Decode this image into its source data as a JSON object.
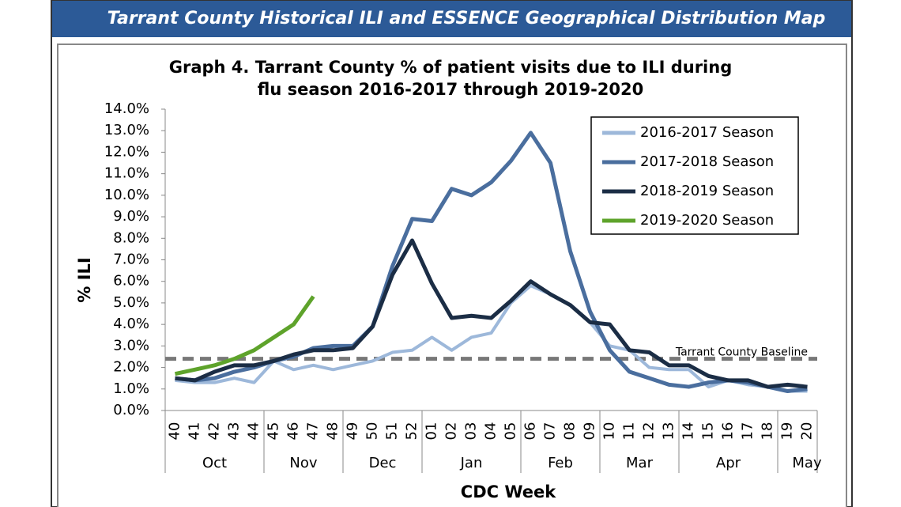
{
  "header": {
    "title": "Tarrant County Historical ILI and ESSENCE Geographical Distribution Map"
  },
  "chart_data": {
    "type": "line",
    "title": [
      "Graph 4. Tarrant County % of patient visits due to ILI during",
      "flu season 2016-2017 through 2019-2020"
    ],
    "y_label": "% ILI",
    "x_label": "CDC Week",
    "categories": [
      "40",
      "41",
      "42",
      "43",
      "44",
      "45",
      "46",
      "47",
      "48",
      "49",
      "50",
      "51",
      "52",
      "01",
      "02",
      "03",
      "04",
      "05",
      "06",
      "07",
      "08",
      "09",
      "10",
      "11",
      "12",
      "13",
      "14",
      "15",
      "16",
      "17",
      "18",
      "19",
      "20"
    ],
    "groups": [
      {
        "label": "Oct",
        "from": "40",
        "to": "44"
      },
      {
        "label": "Nov",
        "from": "45",
        "to": "48"
      },
      {
        "label": "Dec",
        "from": "49",
        "to": "52"
      },
      {
        "label": "Jan",
        "from": "01",
        "to": "05"
      },
      {
        "label": "Feb",
        "from": "06",
        "to": "09"
      },
      {
        "label": "Mar",
        "from": "10",
        "to": "13"
      },
      {
        "label": "Apr",
        "from": "14",
        "to": "18"
      },
      {
        "label": "May",
        "from": "19",
        "to": "20"
      }
    ],
    "series": [
      {
        "name": "2016-2017 Season",
        "color": "#9db8da",
        "values": [
          1.4,
          1.3,
          1.3,
          1.5,
          1.3,
          2.3,
          1.9,
          2.1,
          1.9,
          2.1,
          2.3,
          2.7,
          2.8,
          3.4,
          2.8,
          3.4,
          3.6,
          5.0,
          5.8,
          5.4,
          4.9,
          4.1,
          3.0,
          2.8,
          2.0,
          1.9,
          1.9,
          1.1,
          1.4,
          1.2,
          1.1,
          0.9,
          0.9
        ]
      },
      {
        "name": "2017-2018 Season",
        "color": "#4a6e9e",
        "values": [
          1.5,
          1.4,
          1.5,
          1.8,
          2.0,
          2.3,
          2.5,
          2.9,
          3.0,
          3.0,
          3.9,
          6.7,
          8.9,
          8.8,
          10.3,
          10.0,
          10.6,
          11.6,
          12.9,
          11.5,
          7.4,
          4.6,
          2.8,
          1.8,
          1.5,
          1.2,
          1.1,
          1.3,
          1.4,
          1.3,
          1.1,
          0.9,
          1.0
        ]
      },
      {
        "name": "2018-2019 Season",
        "color": "#1b2d45",
        "values": [
          1.5,
          1.4,
          1.8,
          2.1,
          2.1,
          2.3,
          2.6,
          2.8,
          2.8,
          2.9,
          3.9,
          6.3,
          7.9,
          5.9,
          4.3,
          4.4,
          4.3,
          5.1,
          6.0,
          5.4,
          4.9,
          4.1,
          4.0,
          2.8,
          2.7,
          2.1,
          2.1,
          1.6,
          1.4,
          1.4,
          1.1,
          1.2,
          1.1
        ]
      },
      {
        "name": "2019-2020 Season",
        "color": "#5ea32b",
        "values": [
          1.7,
          1.9,
          2.1,
          2.4,
          2.8,
          3.4,
          4.0,
          5.3,
          null,
          null,
          null,
          null,
          null,
          null,
          null,
          null,
          null,
          null,
          null,
          null,
          null,
          null,
          null,
          null,
          null,
          null,
          null,
          null,
          null,
          null,
          null,
          null,
          null
        ]
      }
    ],
    "baseline": {
      "value": 2.4,
      "label": "Tarrant County Baseline",
      "color": "#777777"
    },
    "ylim": [
      0,
      14
    ],
    "yticks": [
      {
        "value": 0,
        "label": "0.0%"
      },
      {
        "value": 1,
        "label": "1.0%"
      },
      {
        "value": 2,
        "label": "2.0%"
      },
      {
        "value": 3,
        "label": "3.0%"
      },
      {
        "value": 4,
        "label": "4.0%"
      },
      {
        "value": 5,
        "label": "5.0%"
      },
      {
        "value": 6,
        "label": "6.0%"
      },
      {
        "value": 7,
        "label": "7.0%"
      },
      {
        "value": 8,
        "label": "8.0%"
      },
      {
        "value": 9,
        "label": "9.0%"
      },
      {
        "value": 10,
        "label": "10.0%"
      },
      {
        "value": 11,
        "label": "11.0%"
      },
      {
        "value": 12,
        "label": "12.0%"
      },
      {
        "value": 13,
        "label": "13.0%"
      },
      {
        "value": 14,
        "label": "14.0%"
      }
    ],
    "grid": false,
    "legend": "top-right"
  }
}
